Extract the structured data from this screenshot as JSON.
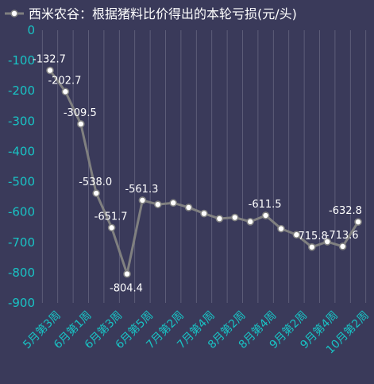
{
  "chart_data": {
    "type": "line",
    "legend": {
      "label": "西米农谷：根据猪料比价得出的本轮亏损(元/头)",
      "position": "top-left",
      "marker": "hollow-circle"
    },
    "colors": {
      "background": "#3a3a5a",
      "line": "#808080",
      "marker_fill": "#ffffff",
      "tick_text": "#19c2c4",
      "data_label": "#ffffff",
      "grid": "#8a8aa0"
    },
    "ylim": [
      -900,
      0
    ],
    "yticks": [
      0,
      -100,
      -200,
      -300,
      -400,
      -500,
      -600,
      -700,
      -800,
      -900
    ],
    "grid": {
      "vertical": true,
      "horizontal": false
    },
    "x_tick_labels": [
      "5月第3周",
      "6月第1周",
      "6月第3周",
      "6月第5周",
      "7月第2周",
      "7月第4周",
      "8月第2周",
      "8月第4周",
      "9月第2周",
      "9月第4周",
      "10月第2周"
    ],
    "series": [
      {
        "values": [
          -132.7,
          -202.7,
          -309.5,
          -538.0,
          -651.7,
          -804.4,
          -561.3,
          -575,
          -570,
          -585,
          -605,
          -622,
          -618,
          -632,
          -611.5,
          -655,
          -675,
          -715.8,
          -698,
          -713.6,
          -632.8
        ],
        "labels": [
          "-132.7",
          "-202.7",
          "-309.5",
          "-538.0",
          "-651.7",
          "-804.4",
          "-561.3",
          "",
          "",
          "",
          "",
          "",
          "",
          "",
          "-611.5",
          "",
          "",
          "-715.8",
          "",
          "-713.6",
          "-632.8"
        ]
      }
    ]
  }
}
